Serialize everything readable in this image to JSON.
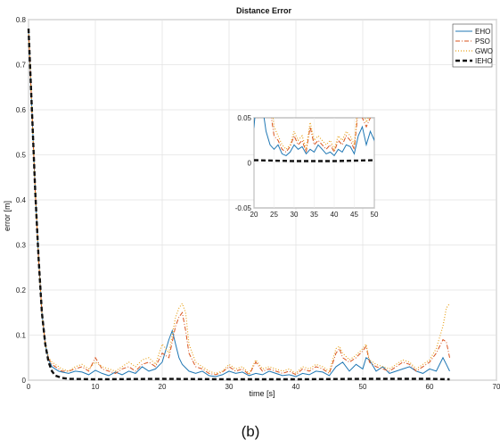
{
  "chart_data": {
    "type": "line",
    "title": "Distance Error",
    "xlabel": "time [s]",
    "ylabel": "error [m]",
    "caption": "(b)",
    "xlim": [
      0,
      70
    ],
    "ylim": [
      0,
      0.8
    ],
    "xticks": [
      "0",
      "10",
      "20",
      "30",
      "40",
      "50",
      "60",
      "70"
    ],
    "yticks": [
      "0",
      "0.1",
      "0.2",
      "0.3",
      "0.4",
      "0.5",
      "0.6",
      "0.7",
      "0.8"
    ],
    "grid": true,
    "legend_position": "top-right",
    "series": [
      {
        "name": "EHO",
        "color": "#1f77b4",
        "style": "solid",
        "x": [
          0,
          0.5,
          1,
          1.5,
          2,
          2.5,
          3,
          3.5,
          4,
          4.5,
          5,
          6,
          7,
          8,
          9,
          10,
          11,
          12,
          13,
          14,
          15,
          16,
          17,
          18,
          19,
          20,
          21,
          21.5,
          22,
          22.5,
          23,
          24,
          25,
          26,
          27,
          28,
          29,
          30,
          31,
          32,
          33,
          34,
          35,
          36,
          37,
          38,
          39,
          40,
          41,
          42,
          43,
          44,
          45,
          46,
          47,
          48,
          49,
          50,
          50.5,
          51,
          52,
          53,
          54,
          55,
          56,
          57,
          58,
          59,
          60,
          61,
          62,
          62.5,
          63
        ],
        "y": [
          0.78,
          0.6,
          0.42,
          0.27,
          0.15,
          0.08,
          0.045,
          0.03,
          0.025,
          0.02,
          0.018,
          0.015,
          0.02,
          0.018,
          0.012,
          0.022,
          0.015,
          0.01,
          0.018,
          0.012,
          0.02,
          0.015,
          0.03,
          0.02,
          0.025,
          0.04,
          0.09,
          0.11,
          0.08,
          0.05,
          0.035,
          0.02,
          0.015,
          0.02,
          0.01,
          0.008,
          0.012,
          0.02,
          0.015,
          0.018,
          0.01,
          0.015,
          0.012,
          0.02,
          0.015,
          0.01,
          0.012,
          0.008,
          0.015,
          0.012,
          0.02,
          0.018,
          0.01,
          0.03,
          0.04,
          0.02,
          0.035,
          0.025,
          0.05,
          0.045,
          0.02,
          0.03,
          0.015,
          0.02,
          0.025,
          0.03,
          0.02,
          0.015,
          0.025,
          0.02,
          0.05,
          0.035,
          0.02
        ]
      },
      {
        "name": "PSO",
        "color": "#d9531e",
        "style": "dashdot",
        "x": [
          0,
          0.5,
          1,
          1.5,
          2,
          2.5,
          3,
          3.5,
          4,
          4.5,
          5,
          6,
          7,
          8,
          9,
          10,
          11,
          12,
          13,
          14,
          15,
          16,
          17,
          18,
          19,
          20,
          21,
          22,
          22.5,
          23,
          23.5,
          24,
          25,
          26,
          27,
          28,
          29,
          30,
          31,
          32,
          33,
          34,
          35,
          36,
          37,
          38,
          39,
          40,
          41,
          42,
          43,
          44,
          45,
          46,
          46.5,
          47,
          48,
          49,
          50,
          50.5,
          51,
          52,
          53,
          54,
          55,
          56,
          57,
          58,
          59,
          60,
          61,
          62,
          62.5,
          63
        ],
        "y": [
          0.78,
          0.6,
          0.42,
          0.27,
          0.15,
          0.08,
          0.048,
          0.035,
          0.03,
          0.025,
          0.02,
          0.02,
          0.025,
          0.03,
          0.02,
          0.05,
          0.025,
          0.02,
          0.015,
          0.025,
          0.03,
          0.02,
          0.035,
          0.04,
          0.03,
          0.06,
          0.05,
          0.12,
          0.14,
          0.15,
          0.11,
          0.06,
          0.03,
          0.025,
          0.015,
          0.012,
          0.018,
          0.03,
          0.02,
          0.025,
          0.012,
          0.04,
          0.02,
          0.025,
          0.02,
          0.015,
          0.02,
          0.012,
          0.025,
          0.02,
          0.03,
          0.025,
          0.015,
          0.06,
          0.07,
          0.05,
          0.04,
          0.05,
          0.065,
          0.075,
          0.04,
          0.03,
          0.025,
          0.02,
          0.03,
          0.04,
          0.035,
          0.02,
          0.03,
          0.04,
          0.06,
          0.09,
          0.085,
          0.05
        ]
      },
      {
        "name": "GWO",
        "color": "#e8a21c",
        "style": "dotted",
        "x": [
          0,
          0.5,
          1,
          1.5,
          2,
          2.5,
          3,
          3.5,
          4,
          4.5,
          5,
          6,
          7,
          8,
          9,
          10,
          11,
          12,
          13,
          14,
          15,
          16,
          17,
          18,
          19,
          20,
          21,
          22,
          22.5,
          23,
          23.5,
          24,
          25,
          26,
          27,
          28,
          29,
          30,
          31,
          32,
          33,
          34,
          35,
          36,
          37,
          38,
          39,
          40,
          41,
          42,
          43,
          44,
          45,
          46,
          46.5,
          47,
          48,
          49,
          50,
          50.5,
          51,
          52,
          53,
          54,
          55,
          56,
          57,
          58,
          59,
          60,
          61,
          62,
          62.5,
          63
        ],
        "y": [
          0.78,
          0.6,
          0.42,
          0.27,
          0.15,
          0.08,
          0.05,
          0.04,
          0.035,
          0.03,
          0.025,
          0.02,
          0.03,
          0.035,
          0.025,
          0.04,
          0.03,
          0.025,
          0.02,
          0.03,
          0.04,
          0.03,
          0.045,
          0.05,
          0.035,
          0.08,
          0.06,
          0.14,
          0.16,
          0.17,
          0.15,
          0.08,
          0.04,
          0.03,
          0.02,
          0.015,
          0.02,
          0.035,
          0.025,
          0.03,
          0.015,
          0.045,
          0.025,
          0.03,
          0.025,
          0.02,
          0.025,
          0.015,
          0.03,
          0.025,
          0.035,
          0.03,
          0.02,
          0.07,
          0.075,
          0.06,
          0.045,
          0.055,
          0.07,
          0.08,
          0.045,
          0.035,
          0.03,
          0.025,
          0.035,
          0.045,
          0.04,
          0.025,
          0.035,
          0.045,
          0.07,
          0.12,
          0.16,
          0.17
        ]
      },
      {
        "name": "IEHO",
        "color": "#111111",
        "style": "dashed",
        "x": [
          0,
          0.5,
          1,
          1.5,
          2,
          2.5,
          3,
          3.5,
          4,
          5,
          6,
          10,
          20,
          30,
          40,
          50,
          60,
          63
        ],
        "y": [
          0.78,
          0.6,
          0.42,
          0.27,
          0.15,
          0.08,
          0.04,
          0.02,
          0.01,
          0.005,
          0.003,
          0.002,
          0.003,
          0.002,
          0.002,
          0.003,
          0.003,
          0.002
        ]
      }
    ],
    "inset": {
      "xlim": [
        20,
        50
      ],
      "ylim": [
        -0.05,
        0.05
      ],
      "xticks": [
        "20",
        "25",
        "30",
        "35",
        "40",
        "45",
        "50"
      ],
      "yticks": [
        "-0.05",
        "0",
        "0.05"
      ]
    }
  }
}
